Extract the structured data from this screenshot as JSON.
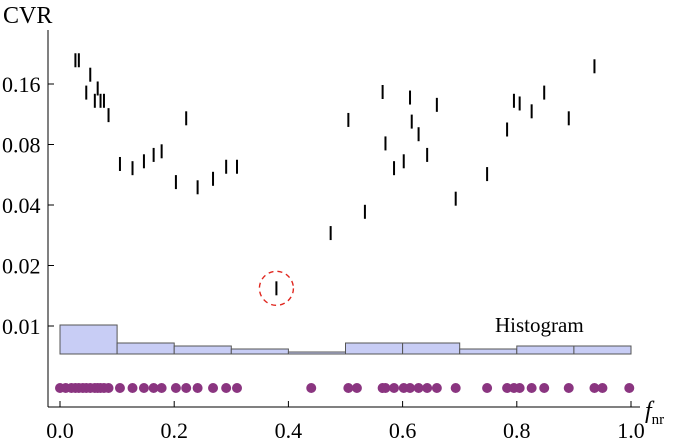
{
  "chart_data": {
    "type": "scatter",
    "title": "",
    "ylabel": "CVR",
    "xlabel_main": "f",
    "xlabel_sub": "nr",
    "xlim": [
      0.0,
      1.0
    ],
    "y_scale": "log",
    "ylim": [
      0.0055,
      0.24
    ],
    "x_ticks": [
      "0.0",
      "0.2",
      "0.4",
      "0.6",
      "0.8",
      "1.0"
    ],
    "y_ticks": [
      "0.01",
      "0.02",
      "0.04",
      "0.08",
      "0.16"
    ],
    "y_tick_values": [
      0.01,
      0.02,
      0.04,
      0.08,
      0.16
    ],
    "grid": false,
    "marker_color": "#000000",
    "series": [
      {
        "marker": "vertical-bar",
        "points": [
          [
            0.027,
            0.21
          ],
          [
            0.033,
            0.21
          ],
          [
            0.046,
            0.145
          ],
          [
            0.053,
            0.178
          ],
          [
            0.061,
            0.132
          ],
          [
            0.066,
            0.152
          ],
          [
            0.071,
            0.132
          ],
          [
            0.077,
            0.132
          ],
          [
            0.085,
            0.112
          ],
          [
            0.105,
            0.064
          ],
          [
            0.127,
            0.061
          ],
          [
            0.147,
            0.066
          ],
          [
            0.164,
            0.071
          ],
          [
            0.178,
            0.074
          ],
          [
            0.203,
            0.052
          ],
          [
            0.221,
            0.108
          ],
          [
            0.241,
            0.049
          ],
          [
            0.268,
            0.054
          ],
          [
            0.291,
            0.062
          ],
          [
            0.31,
            0.062
          ],
          [
            0.379,
            0.0154
          ],
          [
            0.474,
            0.029
          ],
          [
            0.505,
            0.106
          ],
          [
            0.534,
            0.037
          ],
          [
            0.565,
            0.146
          ],
          [
            0.57,
            0.081
          ],
          [
            0.585,
            0.061
          ],
          [
            0.602,
            0.066
          ],
          [
            0.613,
            0.137
          ],
          [
            0.616,
            0.104
          ],
          [
            0.628,
            0.09
          ],
          [
            0.643,
            0.071
          ],
          [
            0.66,
            0.126
          ],
          [
            0.693,
            0.043
          ],
          [
            0.748,
            0.057
          ],
          [
            0.783,
            0.095
          ],
          [
            0.795,
            0.132
          ],
          [
            0.805,
            0.128
          ],
          [
            0.826,
            0.117
          ],
          [
            0.848,
            0.145
          ],
          [
            0.891,
            0.108
          ],
          [
            0.936,
            0.196
          ]
        ]
      }
    ],
    "highlight": {
      "x": 0.379,
      "y": 0.0154,
      "color": "#e0271f",
      "style": "dashed-circle"
    },
    "histogram": {
      "label": "Histogram",
      "fill": "#c8cdf5",
      "edge": "#555555",
      "bin_edges": [
        0.0,
        0.1,
        0.2,
        0.3,
        0.4,
        0.5,
        0.6,
        0.7,
        0.8,
        0.9,
        1.0
      ],
      "counts": [
        9,
        3,
        2,
        1,
        0,
        3,
        3,
        1,
        2,
        2
      ],
      "count_max": 9
    },
    "rug": {
      "color": "#8a3580",
      "x": [
        0.0,
        0.01,
        0.02,
        0.027,
        0.033,
        0.04,
        0.046,
        0.053,
        0.061,
        0.066,
        0.071,
        0.077,
        0.085,
        0.105,
        0.127,
        0.147,
        0.164,
        0.178,
        0.203,
        0.221,
        0.241,
        0.268,
        0.291,
        0.31,
        0.44,
        0.505,
        0.52,
        0.565,
        0.57,
        0.585,
        0.602,
        0.613,
        0.628,
        0.643,
        0.66,
        0.693,
        0.748,
        0.783,
        0.795,
        0.805,
        0.826,
        0.848,
        0.891,
        0.936,
        0.95,
        0.997
      ]
    }
  }
}
